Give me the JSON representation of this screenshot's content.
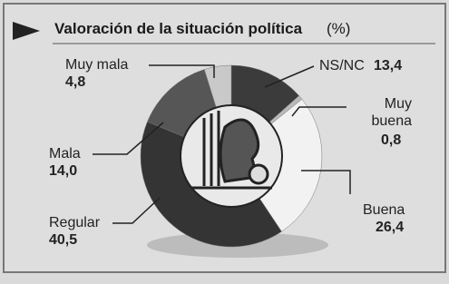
{
  "chart_data": {
    "type": "donut",
    "title": "Valoración de la situación política",
    "unit": "(%)",
    "categories": [
      "NS/NC",
      "Muy buena",
      "Buena",
      "Regular",
      "Mala",
      "Muy mala"
    ],
    "values": [
      13.4,
      0.8,
      26.4,
      40.5,
      14.0,
      4.8
    ],
    "value_labels": [
      "13,4",
      "0,8",
      "26,4",
      "40,5",
      "14,0",
      "4,8"
    ],
    "colors": [
      "#3b3b3b",
      "#b9b9b9",
      "#f2f2f2",
      "#343434",
      "#565656",
      "#c9c9c9"
    ]
  }
}
